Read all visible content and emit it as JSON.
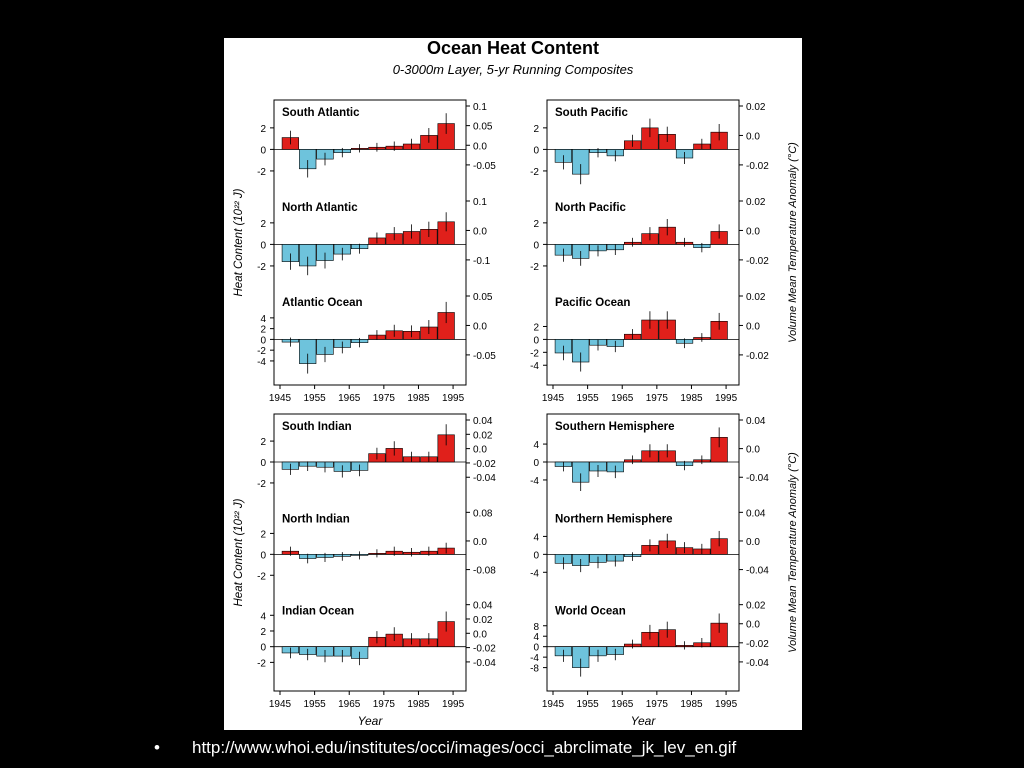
{
  "figure": {
    "title": "Ocean Heat Content",
    "subtitle": "0-3000m Layer, 5-yr Running Composites"
  },
  "footer": {
    "bullet": "•",
    "url_text": "http://www.whoi.edu/institutes/occi/images/occi_abrclimate_jk_lev_en.gif"
  },
  "colors": {
    "positive": "#e0201b",
    "negative": "#6ec3dc",
    "errorbar": "#000000"
  },
  "labels": {
    "ylabel_left": "Heat Content (10²² J)",
    "ylabel_right": "Volume Mean Temperature Anomaly (°C)",
    "xlabel": "Year"
  },
  "chart_data": [
    {
      "type": "bar",
      "title": "South Atlantic",
      "panel": "top-left",
      "x": [
        1948,
        1953,
        1958,
        1963,
        1968,
        1973,
        1978,
        1983,
        1988,
        1993
      ],
      "values": [
        1.1,
        -1.8,
        -0.9,
        -0.3,
        0.1,
        0.2,
        0.3,
        0.5,
        1.3,
        2.4
      ],
      "left_ticks": [
        "2",
        "0",
        "-2"
      ],
      "right_ticks": [
        "0.1",
        "0.05",
        "0.0",
        "-0.05"
      ],
      "ylim": [
        -3,
        3
      ]
    },
    {
      "type": "bar",
      "title": "North Atlantic",
      "panel": "top-left",
      "x": [
        1948,
        1953,
        1958,
        1963,
        1968,
        1973,
        1978,
        1983,
        1988,
        1993
      ],
      "values": [
        -1.6,
        -2.0,
        -1.5,
        -0.9,
        -0.4,
        0.6,
        1.0,
        1.2,
        1.4,
        2.1
      ],
      "left_ticks": [
        "2",
        "0",
        "-2"
      ],
      "right_ticks": [
        "0.1",
        "0.0",
        "-0.1"
      ],
      "ylim": [
        -3,
        3
      ]
    },
    {
      "type": "bar",
      "title": "Atlantic Ocean",
      "panel": "top-left",
      "x": [
        1948,
        1953,
        1958,
        1963,
        1968,
        1973,
        1978,
        1983,
        1988,
        1993
      ],
      "values": [
        -0.5,
        -4.5,
        -2.8,
        -1.5,
        -0.6,
        0.8,
        1.6,
        1.5,
        2.3,
        5.0
      ],
      "left_ticks": [
        "4",
        "2",
        "0",
        "-2",
        "-4"
      ],
      "right_ticks": [
        "0.05",
        "0.0",
        "-0.05"
      ],
      "ylim": [
        -6,
        6
      ]
    },
    {
      "type": "bar",
      "title": "South Pacific",
      "panel": "top-right",
      "x": [
        1948,
        1953,
        1958,
        1963,
        1968,
        1973,
        1978,
        1983,
        1988,
        1993
      ],
      "values": [
        -1.2,
        -2.3,
        -0.3,
        -0.6,
        0.8,
        2.0,
        1.4,
        -0.8,
        0.5,
        1.6
      ],
      "left_ticks": [
        "2",
        "0",
        "-2"
      ],
      "right_ticks": [
        "0.02",
        "0.0",
        "-0.02"
      ],
      "ylim": [
        -3,
        3
      ]
    },
    {
      "type": "bar",
      "title": "North Pacific",
      "panel": "top-right",
      "x": [
        1948,
        1953,
        1958,
        1963,
        1968,
        1973,
        1978,
        1983,
        1988,
        1993
      ],
      "values": [
        -1.0,
        -1.3,
        -0.6,
        -0.5,
        0.2,
        1.0,
        1.6,
        0.2,
        -0.3,
        1.2
      ],
      "left_ticks": [
        "2",
        "0",
        "-2"
      ],
      "right_ticks": [
        "0.02",
        "0.0",
        "-0.02"
      ],
      "ylim": [
        -3,
        3
      ]
    },
    {
      "type": "bar",
      "title": "Pacific Ocean",
      "panel": "top-right",
      "x": [
        1948,
        1953,
        1958,
        1963,
        1968,
        1973,
        1978,
        1983,
        1988,
        1993
      ],
      "values": [
        -2.1,
        -3.5,
        -0.9,
        -1.1,
        0.8,
        3.0,
        3.0,
        -0.6,
        0.3,
        2.8
      ],
      "left_ticks": [
        "2",
        "0",
        "-2",
        "-4"
      ],
      "right_ticks": [
        "0.02",
        "0.0",
        "-0.02"
      ],
      "ylim": [
        -5,
        5
      ]
    },
    {
      "type": "bar",
      "title": "South Indian",
      "panel": "bottom-left",
      "x": [
        1948,
        1953,
        1958,
        1963,
        1968,
        1973,
        1978,
        1983,
        1988,
        1993
      ],
      "values": [
        -0.7,
        -0.4,
        -0.5,
        -0.9,
        -0.8,
        0.8,
        1.3,
        0.5,
        0.5,
        2.6
      ],
      "left_ticks": [
        "2",
        "0",
        "-2"
      ],
      "right_ticks": [
        "0.04",
        "0.02",
        "0.0",
        "-0.02",
        "-0.04"
      ],
      "ylim": [
        -3,
        3
      ]
    },
    {
      "type": "bar",
      "title": "North Indian",
      "panel": "bottom-left",
      "x": [
        1948,
        1953,
        1958,
        1963,
        1968,
        1973,
        1978,
        1983,
        1988,
        1993
      ],
      "values": [
        0.3,
        -0.4,
        -0.3,
        -0.2,
        -0.1,
        0.1,
        0.3,
        0.2,
        0.3,
        0.6
      ],
      "left_ticks": [
        "2",
        "0",
        "-2"
      ],
      "right_ticks": [
        "0.08",
        "0.0",
        "-0.08"
      ],
      "ylim": [
        -3,
        3
      ]
    },
    {
      "type": "bar",
      "title": "Indian Ocean",
      "panel": "bottom-left",
      "x": [
        1948,
        1953,
        1958,
        1963,
        1968,
        1973,
        1978,
        1983,
        1988,
        1993
      ],
      "values": [
        -0.8,
        -1.0,
        -1.2,
        -1.2,
        -1.5,
        1.2,
        1.6,
        1.0,
        1.0,
        3.2
      ],
      "left_ticks": [
        "4",
        "2",
        "0",
        "-2"
      ],
      "right_ticks": [
        "0.04",
        "0.02",
        "0.0",
        "-0.02",
        "-0.04"
      ],
      "ylim": [
        -4,
        4
      ]
    },
    {
      "type": "bar",
      "title": "Southern Hemisphere",
      "panel": "bottom-right",
      "x": [
        1948,
        1953,
        1958,
        1963,
        1968,
        1973,
        1978,
        1983,
        1988,
        1993
      ],
      "values": [
        -1.0,
        -4.5,
        -2.0,
        -2.2,
        0.5,
        2.5,
        2.5,
        -0.8,
        0.5,
        5.5
      ],
      "left_ticks": [
        "4",
        "0",
        "-4"
      ],
      "right_ticks": [
        "0.04",
        "0.0",
        "-0.04"
      ],
      "ylim": [
        -7,
        7
      ]
    },
    {
      "type": "bar",
      "title": "Northern Hemisphere",
      "panel": "bottom-right",
      "x": [
        1948,
        1953,
        1958,
        1963,
        1968,
        1973,
        1978,
        1983,
        1988,
        1993
      ],
      "values": [
        -2.0,
        -2.5,
        -1.8,
        -1.5,
        -0.5,
        2.0,
        3.0,
        1.5,
        1.2,
        3.5
      ],
      "left_ticks": [
        "4",
        "0",
        "-4"
      ],
      "right_ticks": [
        "0.04",
        "0.0",
        "-0.04"
      ],
      "ylim": [
        -7,
        7
      ]
    },
    {
      "type": "bar",
      "title": "World Ocean",
      "panel": "bottom-right",
      "x": [
        1948,
        1953,
        1958,
        1963,
        1968,
        1973,
        1978,
        1983,
        1988,
        1993
      ],
      "values": [
        -3.5,
        -8.0,
        -3.5,
        -3.0,
        1.0,
        5.5,
        6.5,
        0.5,
        1.5,
        9.0
      ],
      "left_ticks": [
        "8",
        "4",
        "0",
        "-4",
        "-8"
      ],
      "right_ticks": [
        "0.02",
        "0.0",
        "-0.02",
        "-0.04"
      ],
      "ylim": [
        -12,
        12
      ]
    }
  ],
  "x_ticks": [
    "1945",
    "1955",
    "1965",
    "1975",
    "1985",
    "1995"
  ]
}
